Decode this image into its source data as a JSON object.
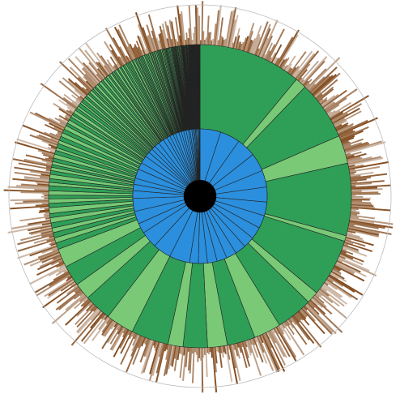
{
  "chart_data": {
    "type": "sunburst",
    "title": "",
    "legend": "none",
    "colors": {
      "center": "#000000",
      "level1": "#2b8fdd",
      "level2_dark": "#2f9e57",
      "level2_light": "#79c976",
      "level3": "#7a4010",
      "outline": "#222222",
      "outer_ring": "#bbbbbb"
    },
    "levels": [
      {
        "name": "level1",
        "segments": 52,
        "largest_segment_share": [
          0.05,
          0.048,
          0.046,
          0.044,
          0.04,
          0.036,
          0.033,
          0.031,
          0.029,
          0.027,
          0.026,
          0.025,
          0.024,
          0.023,
          0.022,
          0.021
        ]
      },
      {
        "name": "level2",
        "segments": 190,
        "largest_segment_share": [
          0.11,
          0.012,
          0.063,
          0.03,
          0.077,
          0.006,
          0.062,
          0.013,
          0.039,
          0.029,
          0.03,
          0.021,
          0.026,
          0.016,
          0.04,
          0.03,
          0.029,
          0.018,
          0.022,
          0.02
        ]
      },
      {
        "name": "level3",
        "segments": 720,
        "value_range": [
          0.05,
          1.0
        ]
      }
    ]
  }
}
